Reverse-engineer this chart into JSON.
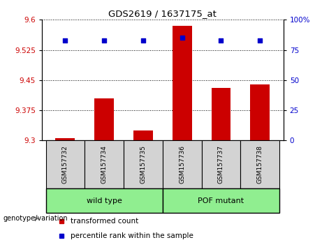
{
  "title": "GDS2619 / 1637175_at",
  "samples": [
    "GSM157732",
    "GSM157734",
    "GSM157735",
    "GSM157736",
    "GSM157737",
    "GSM157738"
  ],
  "transformed_counts": [
    9.305,
    9.405,
    9.325,
    9.585,
    9.43,
    9.44
  ],
  "percentile_ranks": [
    83,
    83,
    83,
    85,
    83,
    83
  ],
  "ylim_left": [
    9.3,
    9.6
  ],
  "ylim_right": [
    0,
    100
  ],
  "yticks_left": [
    9.3,
    9.375,
    9.45,
    9.525,
    9.6
  ],
  "yticks_right": [
    0,
    25,
    50,
    75,
    100
  ],
  "bar_color": "#cc0000",
  "dot_color": "#0000cc",
  "bar_width": 0.5,
  "genotype_label": "genotype/variation",
  "legend_items": [
    {
      "label": "transformed count",
      "color": "#cc0000"
    },
    {
      "label": "percentile rank within the sample",
      "color": "#0000cc"
    }
  ],
  "group_box_color": "#90ee90",
  "sample_cell_color": "#d3d3d3",
  "groups": [
    {
      "label": "wild type",
      "start": 0,
      "end": 2
    },
    {
      "label": "POF mutant",
      "start": 3,
      "end": 5
    }
  ]
}
